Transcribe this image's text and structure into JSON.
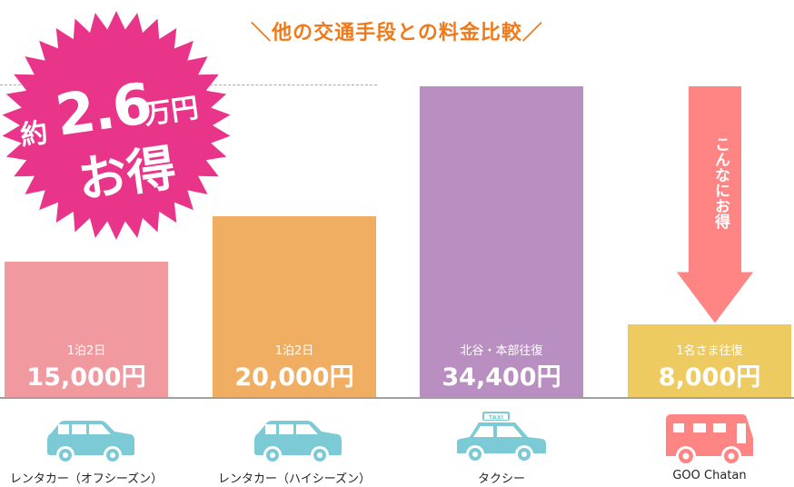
{
  "title": "＼他の交通手段との料金比較／",
  "badge": {
    "prefix": "約",
    "amount": "2.6",
    "unit": "万円",
    "suffix": "お得",
    "color": "#e8358a"
  },
  "arrow": {
    "text": "こんなにお得",
    "color": "#ff8585"
  },
  "chart_data": {
    "type": "bar",
    "title": "＼他の交通手段との料金比較／",
    "ylim": [
      0,
      34400
    ],
    "grid": false,
    "categories": [
      "レンタカー（オフシーズン）",
      "レンタカー（ハイシーズン）",
      "タクシー",
      "GOO Chatan"
    ],
    "values": [
      15000,
      20000,
      34400,
      8000
    ],
    "unit": "円",
    "subtitles": [
      "1泊2日",
      "1泊2日",
      "北谷・本部往復",
      "1名さま往復"
    ],
    "price_labels": [
      "15,000円",
      "20,000円",
      "34,400円",
      "8,000円"
    ],
    "colors": [
      "#f09aa0",
      "#f0ae62",
      "#b98ec0",
      "#eecb60"
    ],
    "icons": [
      "car-icon",
      "car-icon",
      "taxi-icon",
      "bus-icon"
    ],
    "icon_colors": [
      "#7ccad6",
      "#7ccad6",
      "#7ccad6",
      "#ff8585"
    ],
    "taxi_sign": "TAXI"
  }
}
